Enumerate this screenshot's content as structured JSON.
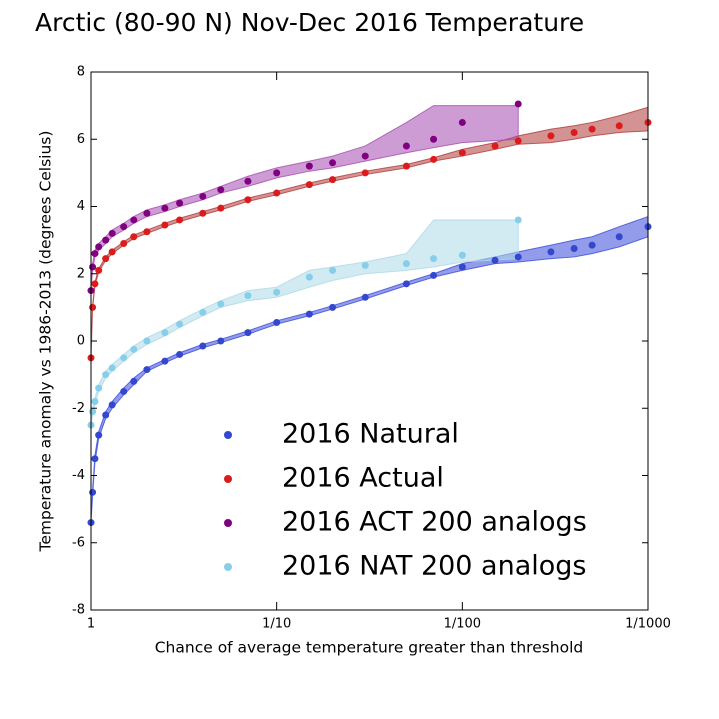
{
  "chart_data": {
    "type": "scatter",
    "title": "Arctic (80-90 N) Nov-Dec 2016 Temperature",
    "xlabel": "Chance of average temperature greater than threshold",
    "ylabel": "Temperature anomaly vs 1986-2013 (degrees Celsius)",
    "xscale": "log",
    "xlim": [
      1,
      1000
    ],
    "xticks": [
      1,
      {
        "value": 10,
        "label": "1/10"
      },
      {
        "value": 100,
        "label": "1/100"
      },
      {
        "value": 1000,
        "label": "1/1000"
      }
    ],
    "ylim": [
      -8,
      8
    ],
    "yticks": [
      -8,
      -6,
      -4,
      -2,
      0,
      2,
      4,
      6,
      8
    ],
    "grid": false,
    "legend": "lower center",
    "series": [
      {
        "name": "2016 Natural",
        "color": "#3347cf",
        "band_color": "#3a4bdb",
        "x": [
          1,
          1.02,
          1.05,
          1.1,
          1.2,
          1.3,
          1.5,
          1.7,
          2,
          2.5,
          3,
          4,
          5,
          7,
          10,
          15,
          20,
          30,
          50,
          70,
          100,
          150,
          200,
          300,
          400,
          500,
          700,
          1000
        ],
        "values": [
          -5.4,
          -4.5,
          -3.5,
          -2.8,
          -2.2,
          -1.9,
          -1.5,
          -1.2,
          -0.85,
          -0.6,
          -0.4,
          -0.15,
          0.0,
          0.25,
          0.55,
          0.8,
          1.0,
          1.3,
          1.7,
          1.95,
          2.2,
          2.4,
          2.5,
          2.65,
          2.75,
          2.85,
          3.1,
          3.4
        ],
        "band_low": [
          -5.4,
          -4.6,
          -3.6,
          -2.9,
          -2.3,
          -2.0,
          -1.6,
          -1.3,
          -0.9,
          -0.65,
          -0.45,
          -0.2,
          -0.05,
          0.2,
          0.5,
          0.75,
          0.95,
          1.25,
          1.65,
          1.9,
          2.1,
          2.3,
          2.35,
          2.45,
          2.5,
          2.6,
          2.8,
          3.1
        ],
        "band_high": [
          -5.4,
          -4.4,
          -3.4,
          -2.7,
          -2.1,
          -1.8,
          -1.4,
          -1.1,
          -0.8,
          -0.55,
          -0.35,
          -0.1,
          0.05,
          0.3,
          0.6,
          0.85,
          1.05,
          1.35,
          1.75,
          2.0,
          2.3,
          2.5,
          2.65,
          2.85,
          3.0,
          3.1,
          3.4,
          3.7
        ]
      },
      {
        "name": "2016 Actual",
        "color": "#dc1c1c",
        "band_color": "#b03a3a",
        "x": [
          1,
          1.02,
          1.05,
          1.1,
          1.2,
          1.3,
          1.5,
          1.7,
          2,
          2.5,
          3,
          4,
          5,
          7,
          10,
          15,
          20,
          30,
          50,
          70,
          100,
          150,
          200,
          300,
          400,
          500,
          700,
          1000
        ],
        "values": [
          -0.5,
          1.0,
          1.7,
          2.1,
          2.45,
          2.65,
          2.9,
          3.1,
          3.25,
          3.45,
          3.6,
          3.8,
          3.95,
          4.2,
          4.4,
          4.65,
          4.8,
          5.0,
          5.2,
          5.4,
          5.6,
          5.8,
          5.95,
          6.1,
          6.2,
          6.3,
          6.4,
          6.5
        ],
        "band_low": [
          -0.5,
          0.95,
          1.65,
          2.05,
          2.4,
          2.6,
          2.85,
          3.05,
          3.2,
          3.4,
          3.55,
          3.75,
          3.9,
          4.15,
          4.35,
          4.6,
          4.75,
          4.95,
          5.15,
          5.35,
          5.5,
          5.7,
          5.85,
          5.9,
          6.0,
          6.1,
          6.2,
          6.25
        ],
        "band_high": [
          -0.5,
          1.05,
          1.75,
          2.15,
          2.5,
          2.7,
          2.95,
          3.15,
          3.3,
          3.5,
          3.65,
          3.85,
          4.0,
          4.25,
          4.45,
          4.7,
          4.85,
          5.05,
          5.25,
          5.45,
          5.7,
          5.9,
          6.1,
          6.3,
          6.4,
          6.5,
          6.7,
          6.95
        ]
      },
      {
        "name": "2016 ACT 200 analogs",
        "color": "#800080",
        "band_color": "#a54bb0",
        "x": [
          1,
          1.02,
          1.05,
          1.1,
          1.2,
          1.3,
          1.5,
          1.7,
          2,
          2.5,
          3,
          4,
          5,
          7,
          10,
          15,
          20,
          30,
          50,
          70,
          100,
          200
        ],
        "values": [
          1.5,
          2.2,
          2.6,
          2.8,
          3.0,
          3.2,
          3.4,
          3.6,
          3.8,
          3.95,
          4.1,
          4.3,
          4.5,
          4.75,
          5.0,
          5.2,
          5.3,
          5.5,
          5.8,
          6.0,
          6.5,
          7.05
        ],
        "band_low": [
          1.5,
          2.1,
          2.5,
          2.7,
          2.9,
          3.1,
          3.3,
          3.5,
          3.7,
          3.85,
          4.0,
          4.2,
          4.4,
          4.6,
          4.85,
          5.05,
          5.15,
          5.35,
          5.6,
          5.75,
          5.9,
          6.0
        ],
        "band_high": [
          1.5,
          2.3,
          2.7,
          2.9,
          3.1,
          3.3,
          3.5,
          3.7,
          3.9,
          4.05,
          4.2,
          4.4,
          4.6,
          4.9,
          5.15,
          5.35,
          5.5,
          5.8,
          6.5,
          7.0,
          7.0,
          7.0
        ]
      },
      {
        "name": "2016 NAT 200 analogs",
        "color": "#87ceeb",
        "band_color": "#add8e6",
        "x": [
          1,
          1.02,
          1.05,
          1.1,
          1.2,
          1.3,
          1.5,
          1.7,
          2,
          2.5,
          3,
          4,
          5,
          7,
          10,
          15,
          20,
          30,
          50,
          70,
          100,
          200
        ],
        "values": [
          -2.5,
          -2.1,
          -1.8,
          -1.4,
          -1.0,
          -0.8,
          -0.5,
          -0.25,
          0.0,
          0.25,
          0.5,
          0.85,
          1.1,
          1.35,
          1.45,
          1.9,
          2.1,
          2.25,
          2.3,
          2.45,
          2.55,
          3.6
        ],
        "band_low": [
          -2.5,
          -2.2,
          -1.9,
          -1.5,
          -1.1,
          -0.9,
          -0.6,
          -0.35,
          -0.1,
          0.15,
          0.4,
          0.75,
          1.0,
          1.2,
          1.3,
          1.6,
          1.8,
          2.0,
          2.1,
          2.2,
          2.35,
          2.45
        ],
        "band_high": [
          -2.5,
          -2.0,
          -1.7,
          -1.3,
          -0.9,
          -0.7,
          -0.4,
          -0.15,
          0.1,
          0.35,
          0.6,
          0.95,
          1.2,
          1.5,
          1.6,
          2.1,
          2.2,
          2.35,
          2.6,
          3.6,
          3.6,
          3.6
        ]
      }
    ]
  }
}
